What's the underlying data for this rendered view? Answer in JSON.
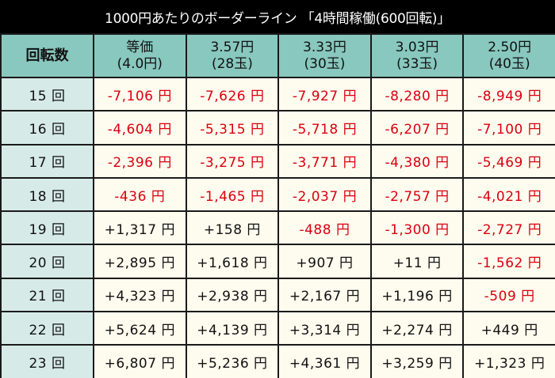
{
  "title": "1000円あたりのボーダーライン 「4時間稼働(600回転)」",
  "colors": {
    "title_bg": "#000000",
    "header_bg": "#88C8BE",
    "rowhead_bg": "#D6EBE8",
    "cell_bg": "#FEFCEF",
    "negative": "#D9000F",
    "positive": "#111111"
  },
  "table": {
    "columns": [
      {
        "line1": "回転数",
        "line2": ""
      },
      {
        "line1": "等価",
        "line2": "(4.0円)"
      },
      {
        "line1": "3.57円",
        "line2": "(28玉)"
      },
      {
        "line1": "3.33円",
        "line2": "(30玉)"
      },
      {
        "line1": "3.03円",
        "line2": "(33玉)"
      },
      {
        "line1": "2.50円",
        "line2": "(40玉)"
      }
    ],
    "rows": [
      {
        "label": "15 回",
        "values": [
          "-7,106 円",
          "-7,626 円",
          "-7,927 円",
          "-8,280 円",
          "-8,949 円"
        ]
      },
      {
        "label": "16 回",
        "values": [
          "-4,604 円",
          "-5,315 円",
          "-5,718 円",
          "-6,207 円",
          "-7,100 円"
        ]
      },
      {
        "label": "17 回",
        "values": [
          "-2,396 円",
          "-3,275 円",
          "-3,771 円",
          "-4,380 円",
          "-5,469 円"
        ]
      },
      {
        "label": "18 回",
        "values": [
          "-436 円",
          "-1,465 円",
          "-2,037 円",
          "-2,757 円",
          "-4,021 円"
        ]
      },
      {
        "label": "19 回",
        "values": [
          "+1,317 円",
          "+158 円",
          "-488 円",
          "-1,300 円",
          "-2,727 円"
        ]
      },
      {
        "label": "20 回",
        "values": [
          "+2,895 円",
          "+1,618 円",
          "+907 円",
          "+11 円",
          "-1,562 円"
        ]
      },
      {
        "label": "21 回",
        "values": [
          "+4,323 円",
          "+2,938 円",
          "+2,167 円",
          "+1,196 円",
          "-509 円"
        ]
      },
      {
        "label": "22 回",
        "values": [
          "+5,624 円",
          "+4,139 円",
          "+3,314 円",
          "+2,274 円",
          "+449 円"
        ]
      },
      {
        "label": "23 回",
        "values": [
          "+6,807 円",
          "+5,236 円",
          "+4,361 円",
          "+3,259 円",
          "+1,323 円"
        ]
      }
    ]
  }
}
